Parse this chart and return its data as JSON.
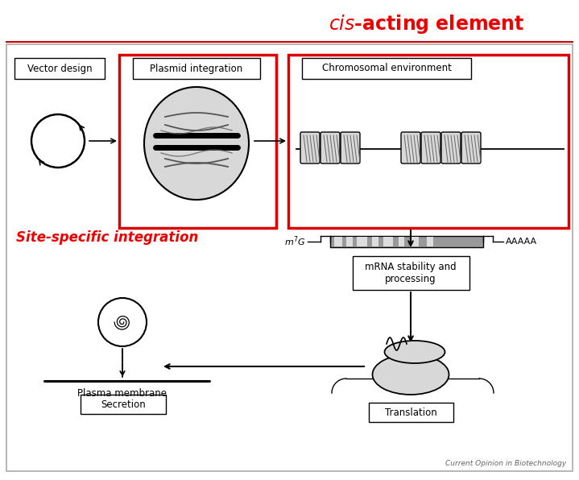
{
  "title_italic": "cis",
  "title_rest": "-acting element",
  "label_site_specific": "Site-specific integration",
  "label_vector": "Vector design",
  "label_plasmid": "Plasmid integration",
  "label_chromosomal": "Chromosomal environment",
  "label_mrna": "mRNA stability and\nprocessing",
  "label_translation": "Translation",
  "label_plasma": "Plasma membrane",
  "label_secretion": "Secretion",
  "label_aaaaa": "AAAAA",
  "label_citation": "Current Opinion in Biotechnology",
  "bg_color": "#ffffff",
  "border_color": "#aaaaaa",
  "red_color": "#ee0000",
  "red_box_color": "#dd0000",
  "gray_fill": "#d8d8d8",
  "gray_mid": "#aaaaaa",
  "gray_light": "#cccccc",
  "arrow_color": "#222222",
  "mRNA_bar_color": "#999999",
  "mRNA_light_color": "#dddddd",
  "nuc_fill": "#c8c8c8"
}
